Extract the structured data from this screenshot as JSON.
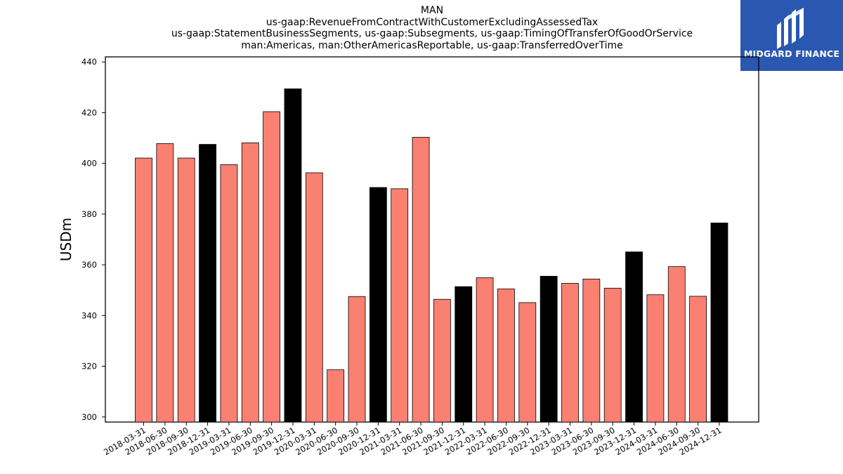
{
  "header": {
    "title_lines": [
      "MAN",
      "us-gaap:RevenueFromContractWithCustomerExcludingAssessedTax",
      "us-gaap:StatementBusinessSegments, us-gaap:Subsegments, us-gaap:TimingOfTransferOfGoodOrService",
      "man:Americas, man:OtherAmericasReportable, us-gaap:TransferredOverTime"
    ]
  },
  "logo": {
    "text": "MIDGARD FINANCE",
    "icon": "midgard-logo-icon",
    "background": "#2a57b0"
  },
  "chart_data": {
    "type": "bar",
    "ylabel": "USDm",
    "xlabel": "",
    "ylim": [
      298,
      442
    ],
    "yticks": [
      300,
      320,
      340,
      360,
      380,
      400,
      420,
      440
    ],
    "grid": false,
    "colors": {
      "default": "#fa8072",
      "year_end": "#000000",
      "edge": "#000000"
    },
    "categories": [
      "2018-03-31",
      "2018-06-30",
      "2018-09-30",
      "2018-12-31",
      "2019-03-31",
      "2019-06-30",
      "2019-09-30",
      "2019-12-31",
      "2020-03-31",
      "2020-06-30",
      "2020-09-30",
      "2020-12-31",
      "2021-03-31",
      "2021-06-30",
      "2021-09-30",
      "2021-12-31",
      "2022-03-31",
      "2022-06-30",
      "2022-09-30",
      "2022-12-31",
      "2023-03-31",
      "2023-06-30",
      "2023-09-30",
      "2023-12-31",
      "2024-03-31",
      "2024-06-30",
      "2024-09-30",
      "2024-12-31"
    ],
    "values": [
      402.1,
      407.8,
      402.1,
      407.5,
      399.5,
      408.1,
      420.4,
      429.4,
      396.3,
      318.6,
      347.5,
      390.5,
      390.0,
      410.3,
      346.4,
      351.4,
      354.9,
      350.5,
      345.1,
      355.5,
      352.7,
      354.4,
      350.8,
      365.1,
      348.2,
      359.3,
      347.6,
      376.5
    ]
  }
}
